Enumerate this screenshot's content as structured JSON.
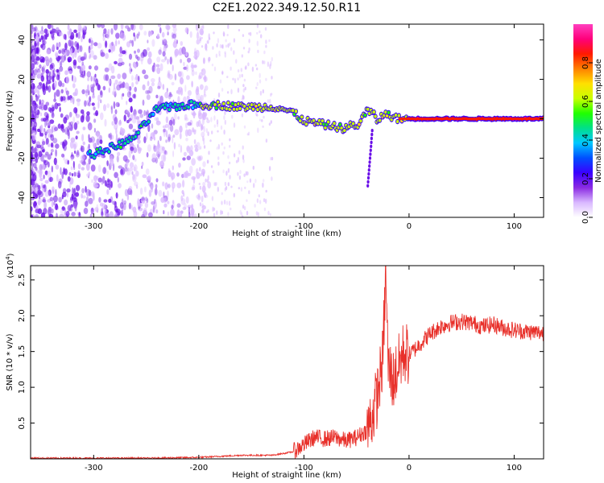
{
  "title": "C2E1.2022.349.12.50.R11",
  "chart_data": [
    {
      "type": "heatmap",
      "title": "C2E1.2022.349.12.50.R11",
      "xlabel": "Height of straight line (km)",
      "ylabel": "Frequency (Hz)",
      "xlim": [
        -360,
        128
      ],
      "ylim": [
        -50,
        48
      ],
      "x_ticks": [
        "-300",
        "-200",
        "-100",
        "0",
        "100"
      ],
      "y_ticks": [
        "-40",
        "-20",
        "0",
        "20",
        "40"
      ],
      "colorbar": {
        "label": "Normalized spectral amplitude",
        "range": [
          0,
          1
        ],
        "ticks": [
          "0.0",
          "0.2",
          "0.4",
          "0.6",
          "0.8"
        ],
        "colors": [
          "#ffffff",
          "#d9b8ff",
          "#8a2be2",
          "#3a00ff",
          "#0050ff",
          "#00c8ff",
          "#00e08a",
          "#20ff00",
          "#c8ff00",
          "#ffe000",
          "#ff8000",
          "#ff1a00",
          "#ff007a",
          "#ff3fbf"
        ]
      },
      "trace": {
        "x": [
          -300,
          -280,
          -265,
          -250,
          -240,
          -225,
          -210,
          -200,
          -180,
          -160,
          -140,
          -125,
          -110,
          -100,
          -90,
          -80,
          -70,
          -60,
          -55,
          -50,
          -45,
          -40,
          -35,
          -30,
          -25,
          -20,
          -10,
          0,
          50,
          100,
          128
        ],
        "y": [
          -18,
          -14,
          -11,
          -2,
          5,
          6,
          7,
          7,
          7,
          6,
          6,
          6,
          3,
          -1,
          -2,
          -3,
          -4,
          -5,
          -3,
          -4,
          0,
          4,
          3,
          -1,
          2,
          2,
          0,
          0,
          0,
          0,
          0
        ]
      }
    },
    {
      "type": "line",
      "xlabel": "Height of straight line (km)",
      "ylabel": "SNR (10 * v/v)",
      "y_exponent_label": "(x10",
      "y_exponent": "4",
      "y_exponent_close": ")",
      "xlim": [
        -360,
        128
      ],
      "ylim": [
        0,
        2.7
      ],
      "x_ticks": [
        "-300",
        "-200",
        "-100",
        "0",
        "100"
      ],
      "y_ticks": [
        "0.5",
        "1.0",
        "1.5",
        "2.0",
        "2.5"
      ],
      "color": "#e8302a",
      "series": [
        {
          "x": [
            -360,
            -300,
            -250,
            -200,
            -160,
            -130,
            -110,
            -100,
            -90,
            -80,
            -70,
            -60,
            -50,
            -40,
            -35,
            -30,
            -25,
            -22,
            -20,
            -15,
            -10,
            -5,
            0,
            10,
            20,
            30,
            40,
            50,
            60,
            70,
            80,
            90,
            100,
            110,
            120,
            128
          ],
          "y": [
            0.01,
            0.01,
            0.01,
            0.02,
            0.05,
            0.05,
            0.1,
            0.2,
            0.3,
            0.28,
            0.3,
            0.25,
            0.3,
            0.4,
            0.6,
            0.9,
            1.4,
            2.65,
            1.3,
            1.1,
            1.3,
            1.5,
            1.45,
            1.6,
            1.75,
            1.85,
            1.9,
            1.92,
            1.9,
            1.85,
            1.88,
            1.83,
            1.8,
            1.78,
            1.77,
            1.76
          ]
        }
      ]
    }
  ]
}
